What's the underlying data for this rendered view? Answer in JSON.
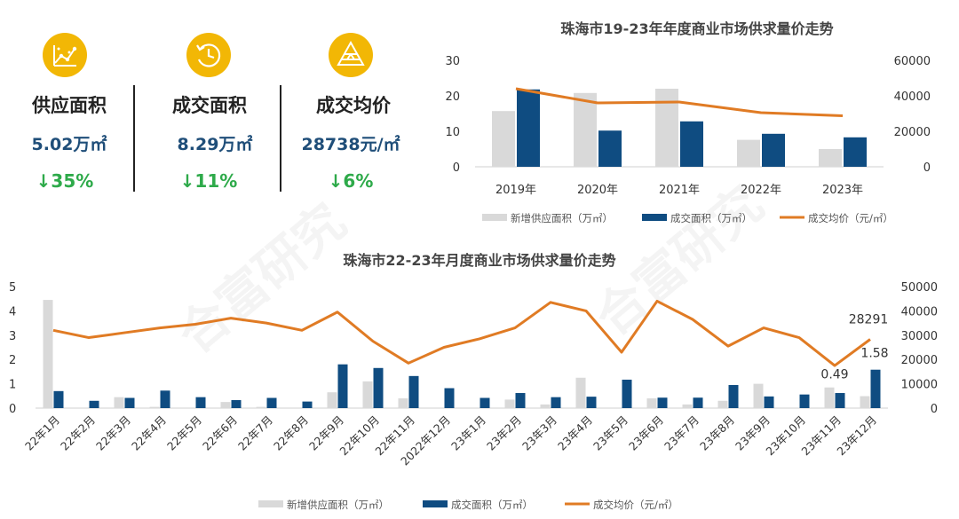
{
  "kpis": [
    {
      "title": "供应面积",
      "value": "5.02万㎡",
      "change": "↓35%",
      "icon": "chart-dots-icon"
    },
    {
      "title": "成交面积",
      "value": "8.29万㎡",
      "change": "↓11%",
      "icon": "clock-refresh-icon"
    },
    {
      "title": "成交均价",
      "value": "28738元/㎡",
      "change": "↓6%",
      "icon": "triangle-stack-icon"
    }
  ],
  "watermark": "合富研究",
  "colors": {
    "supply": "#d9d9d9",
    "deal": "#0f4c81",
    "price": "#e07b24",
    "kpi_icon": "#f2b705",
    "kpi_value": "#1f4e79",
    "kpi_change": "#2eaa4a"
  },
  "chart_data": [
    {
      "type": "bar",
      "title": "珠海市19-23年年度商业市场供求量价走势",
      "categories": [
        "2019年",
        "2020年",
        "2021年",
        "2022年",
        "2023年"
      ],
      "series": [
        {
          "name": "新增供应面积（万㎡）",
          "type": "bar",
          "axis": "left",
          "values": [
            15.7,
            20.8,
            22.0,
            7.6,
            5.0
          ]
        },
        {
          "name": "成交面积（万㎡）",
          "type": "bar",
          "axis": "left",
          "values": [
            21.8,
            10.2,
            12.8,
            9.3,
            8.3
          ]
        },
        {
          "name": "成交均价（元/㎡）",
          "type": "line",
          "axis": "right",
          "values": [
            44000,
            36000,
            36500,
            30500,
            28738
          ]
        }
      ],
      "y_left": {
        "min": 0,
        "max": 30,
        "ticks": [
          0,
          10,
          20,
          30
        ]
      },
      "y_right": {
        "min": 0,
        "max": 60000,
        "ticks": [
          0,
          20000,
          40000,
          60000
        ]
      },
      "legend": "bottom"
    },
    {
      "type": "bar",
      "title": "珠海市22-23年月度商业市场供求量价走势",
      "categories": [
        "22年1月",
        "22年2月",
        "22年3月",
        "22年4月",
        "22年5月",
        "22年6月",
        "22年7月",
        "22年8月",
        "22年9月",
        "22年10月",
        "22年11月",
        "2022年12月",
        "23年1月",
        "23年2月",
        "23年3月",
        "23年4月",
        "23年5月",
        "23年6月",
        "23年7月",
        "23年8月",
        "23年9月",
        "23年10月",
        "23年11月",
        "23年12月"
      ],
      "series": [
        {
          "name": "新增供应面积（万㎡）",
          "type": "bar",
          "axis": "left",
          "values": [
            4.45,
            0,
            0.45,
            0.05,
            0,
            0.25,
            0.05,
            0,
            0.65,
            1.1,
            0.4,
            0,
            0,
            0.35,
            0.15,
            1.25,
            0,
            0.4,
            0.15,
            0.3,
            1.0,
            0,
            0.85,
            0.49
          ]
        },
        {
          "name": "成交面积（万㎡）",
          "type": "bar",
          "axis": "left",
          "values": [
            0.7,
            0.3,
            0.42,
            0.72,
            0.45,
            0.33,
            0.42,
            0.27,
            1.8,
            1.65,
            1.32,
            0.82,
            0.42,
            0.62,
            0.45,
            0.47,
            1.17,
            0.43,
            0.43,
            0.95,
            0.48,
            0.56,
            0.62,
            1.58
          ]
        },
        {
          "name": "成交均价（元/㎡）",
          "type": "line",
          "axis": "right",
          "values": [
            32000,
            29000,
            31000,
            33000,
            34500,
            37000,
            35000,
            32000,
            39500,
            27500,
            18500,
            25000,
            28500,
            33000,
            43500,
            40000,
            23000,
            44000,
            36500,
            25500,
            33000,
            29000,
            17500,
            28291
          ]
        }
      ],
      "data_labels": [
        "28291",
        "1.58",
        "0.49"
      ],
      "y_left": {
        "min": 0,
        "max": 5,
        "ticks": [
          0,
          1,
          2,
          3,
          4,
          5
        ]
      },
      "y_right": {
        "min": 0,
        "max": 50000,
        "ticks": [
          0,
          10000,
          20000,
          30000,
          40000,
          50000
        ]
      },
      "legend": "bottom"
    }
  ]
}
